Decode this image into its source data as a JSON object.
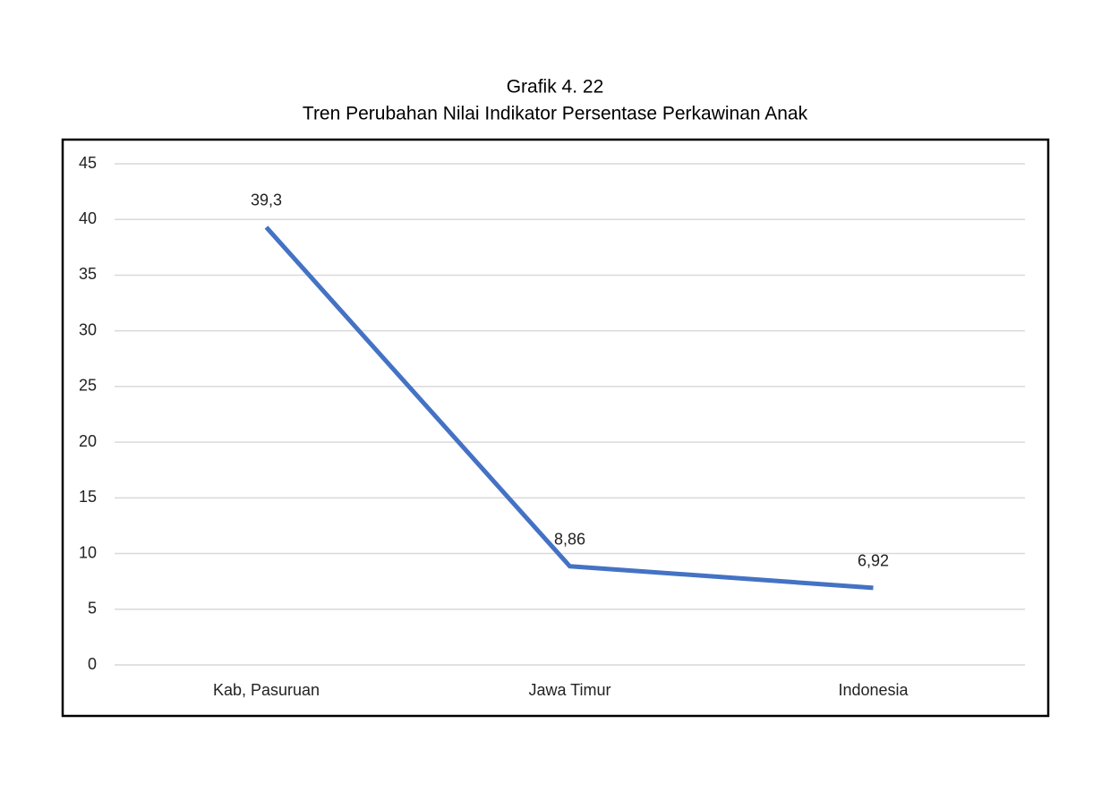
{
  "chart_data": {
    "type": "line",
    "title": "Grafik 4. 22",
    "subtitle": "Tren Perubahan Nilai Indikator Persentase Perkawinan Anak",
    "categories": [
      "Kab, Pasuruan",
      "Jawa Timur",
      "Indonesia"
    ],
    "values": [
      39.3,
      8.86,
      6.92
    ],
    "value_labels": [
      "39,3",
      "8,86",
      "6,92"
    ],
    "color": "#4472c4",
    "ylim": [
      0,
      45
    ],
    "yticks": [
      0,
      5,
      10,
      15,
      20,
      25,
      30,
      35,
      40,
      45
    ],
    "grid": true
  }
}
